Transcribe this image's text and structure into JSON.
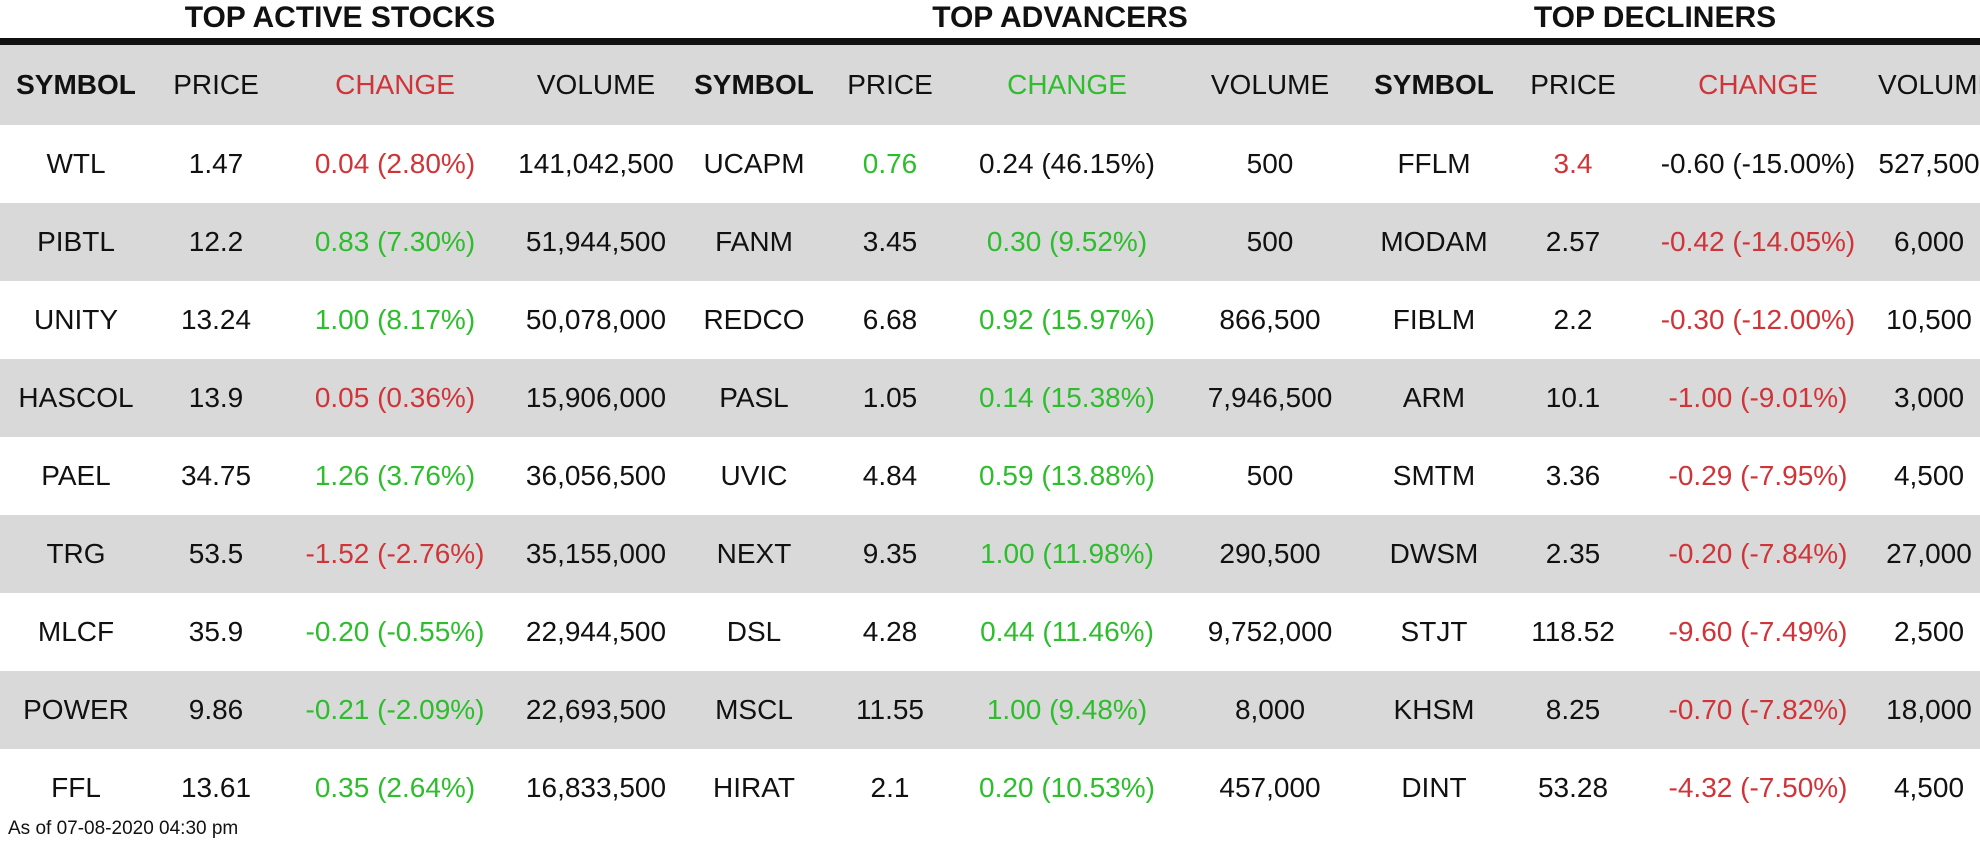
{
  "sections": {
    "active_title": "TOP ACTIVE STOCKS",
    "advancers_title": "TOP ADVANCERS",
    "decliners_title": "TOP DECLINERS"
  },
  "headers": {
    "symbol": "SYMBOL",
    "price": "PRICE",
    "change": "CHANGE",
    "volume": "VOLUME"
  },
  "colors": {
    "up": "#2dbd2d",
    "down": "#d13438",
    "neutral": "#111111",
    "band": "#d9d9d9"
  },
  "rows": [
    {
      "active": {
        "symbol": "WTL",
        "price": "1.47",
        "change": "0.04 (2.80%)",
        "volume": "141,042,500"
      },
      "advancer": {
        "symbol": "UCAPM",
        "price": "0.76",
        "change": "0.24 (46.15%)",
        "volume": "500"
      },
      "decliner": {
        "symbol": "FFLM",
        "price": "3.4",
        "change": "-0.60 (-15.00%)",
        "volume": "527,500"
      }
    },
    {
      "active": {
        "symbol": "PIBTL",
        "price": "12.2",
        "change": "0.83 (7.30%)",
        "volume": "51,944,500"
      },
      "advancer": {
        "symbol": "FANM",
        "price": "3.45",
        "change": "0.30 (9.52%)",
        "volume": "500"
      },
      "decliner": {
        "symbol": "MODAM",
        "price": "2.57",
        "change": "-0.42 (-14.05%)",
        "volume": "6,000"
      }
    },
    {
      "active": {
        "symbol": "UNITY",
        "price": "13.24",
        "change": "1.00 (8.17%)",
        "volume": "50,078,000"
      },
      "advancer": {
        "symbol": "REDCO",
        "price": "6.68",
        "change": "0.92 (15.97%)",
        "volume": "866,500"
      },
      "decliner": {
        "symbol": "FIBLM",
        "price": "2.2",
        "change": "-0.30 (-12.00%)",
        "volume": "10,500"
      }
    },
    {
      "active": {
        "symbol": "HASCOL",
        "price": "13.9",
        "change": "0.05 (0.36%)",
        "volume": "15,906,000"
      },
      "advancer": {
        "symbol": "PASL",
        "price": "1.05",
        "change": "0.14 (15.38%)",
        "volume": "7,946,500"
      },
      "decliner": {
        "symbol": "ARM",
        "price": "10.1",
        "change": "-1.00 (-9.01%)",
        "volume": "3,000"
      }
    },
    {
      "active": {
        "symbol": "PAEL",
        "price": "34.75",
        "change": "1.26 (3.76%)",
        "volume": "36,056,500"
      },
      "advancer": {
        "symbol": "UVIC",
        "price": "4.84",
        "change": "0.59 (13.88%)",
        "volume": "500"
      },
      "decliner": {
        "symbol": "SMTM",
        "price": "3.36",
        "change": "-0.29 (-7.95%)",
        "volume": "4,500"
      }
    },
    {
      "active": {
        "symbol": "TRG",
        "price": "53.5",
        "change": "-1.52 (-2.76%)",
        "volume": "35,155,000"
      },
      "advancer": {
        "symbol": "NEXT",
        "price": "9.35",
        "change": "1.00 (11.98%)",
        "volume": "290,500"
      },
      "decliner": {
        "symbol": "DWSM",
        "price": "2.35",
        "change": "-0.20 (-7.84%)",
        "volume": "27,000"
      }
    },
    {
      "active": {
        "symbol": "MLCF",
        "price": "35.9",
        "change": "-0.20 (-0.55%)",
        "volume": "22,944,500"
      },
      "advancer": {
        "symbol": "DSL",
        "price": "4.28",
        "change": "0.44 (11.46%)",
        "volume": "9,752,000"
      },
      "decliner": {
        "symbol": "STJT",
        "price": "118.52",
        "change": "-9.60 (-7.49%)",
        "volume": "2,500"
      }
    },
    {
      "active": {
        "symbol": "POWER",
        "price": "9.86",
        "change": "-0.21 (-2.09%)",
        "volume": "22,693,500"
      },
      "advancer": {
        "symbol": "MSCL",
        "price": "11.55",
        "change": "1.00 (9.48%)",
        "volume": "8,000"
      },
      "decliner": {
        "symbol": "KHSM",
        "price": "8.25",
        "change": "-0.70 (-7.82%)",
        "volume": "18,000"
      }
    },
    {
      "active": {
        "symbol": "FFL",
        "price": "13.61",
        "change": "0.35 (2.64%)",
        "volume": "16,833,500"
      },
      "advancer": {
        "symbol": "HIRAT",
        "price": "2.1",
        "change": "0.20 (10.53%)",
        "volume": "457,000"
      },
      "decliner": {
        "symbol": "DINT",
        "price": "53.28",
        "change": "-4.32 (-7.50%)",
        "volume": "4,500"
      }
    }
  ],
  "footer": {
    "as_of": "As of 07-08-2020 04:30 pm"
  }
}
